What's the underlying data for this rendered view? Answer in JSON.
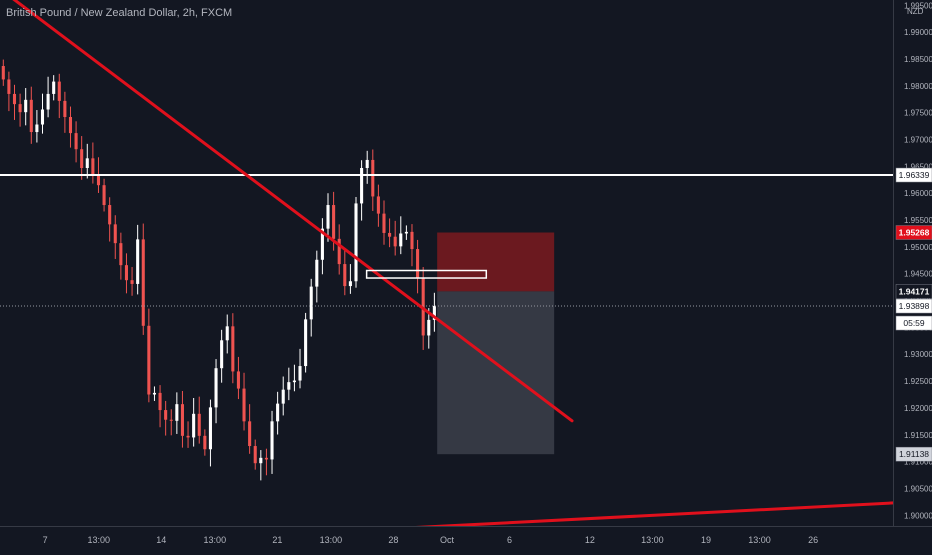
{
  "chart_data": {
    "type": "candlestick",
    "title": "British Pound / New Zealand Dollar, 2h, FXCM",
    "currency": "NZD",
    "y_range": [
      1.898,
      1.996
    ],
    "y_ticks": [
      1.995,
      1.99,
      1.985,
      1.98,
      1.975,
      1.97,
      1.965,
      1.96,
      1.955,
      1.95,
      1.945,
      1.94,
      1.935,
      1.93,
      1.925,
      1.92,
      1.915,
      1.91,
      1.905,
      1.9
    ],
    "y_tick_labels": [
      "1.99500",
      "1.99000",
      "1.98500",
      "1.98000",
      "1.97500",
      "1.97000",
      "1.96500",
      "1.96000",
      "1.95500",
      "1.95000",
      "1.94500",
      "1.94000",
      "1.93500",
      "1.93000",
      "1.92500",
      "1.92000",
      "1.91500",
      "1.91000",
      "1.90500",
      "1.90000"
    ],
    "x_labels": [
      "7",
      "13:00",
      "14",
      "13:00",
      "21",
      "13:00",
      "28",
      "Oct",
      "6",
      "12",
      "13:00",
      "19",
      "13:00",
      "26"
    ],
    "x_label_positions": [
      5,
      11,
      18,
      24,
      31,
      37,
      44,
      50,
      57,
      66,
      73,
      79,
      85,
      91
    ],
    "candles_close": [
      1.9812,
      1.9785,
      1.9766,
      1.9751,
      1.9774,
      1.9714,
      1.9728,
      1.9756,
      1.9785,
      1.9808,
      1.9772,
      1.9742,
      1.9712,
      1.9682,
      1.9647,
      1.9665,
      1.9635,
      1.9615,
      1.9578,
      1.9542,
      1.9507,
      1.9466,
      1.9438,
      1.9431,
      1.9514,
      1.9353,
      1.9225,
      1.9228,
      1.9196,
      1.9178,
      1.9176,
      1.9207,
      1.9148,
      1.9145,
      1.9189,
      1.9148,
      1.9123,
      1.9201,
      1.9274,
      1.9326,
      1.9352,
      1.9268,
      1.9236,
      1.9175,
      1.9129,
      1.9097,
      1.9107,
      1.9104,
      1.9175,
      1.9208,
      1.9234,
      1.9248,
      1.9251,
      1.9278,
      1.9365,
      1.9426,
      1.9476,
      1.9534,
      1.9578,
      1.9515,
      1.9468,
      1.9427,
      1.9436,
      1.9581,
      1.9647,
      1.9662,
      1.9594,
      1.9562,
      1.9526,
      1.9519,
      1.9501,
      1.9525,
      1.9528,
      1.9496,
      1.9443,
      1.9335,
      1.9364,
      1.939
    ],
    "price_labels": [
      {
        "label": "1.96339",
        "value": 1.96339,
        "kind": "level"
      },
      {
        "label": "1.95268",
        "value": 1.95268,
        "kind": "stop"
      },
      {
        "label": "1.94171",
        "value": 1.94171,
        "kind": "entry"
      },
      {
        "label": "1.93898",
        "value": 1.93898,
        "kind": "last"
      },
      {
        "label": "05:59",
        "kind": "countdown"
      },
      {
        "label": "1.91138",
        "value": 1.91138,
        "kind": "target"
      }
    ],
    "annotations": {
      "horizontal_line": 1.96339,
      "trendline_down": {
        "from": [
          0,
          1.998
        ],
        "to": [
          64,
          1.9176
        ]
      },
      "trendline_up": {
        "from": [
          44,
          1.8975
        ],
        "to": [
          100,
          1.9023
        ]
      },
      "stop_zone": {
        "x": [
          48.9,
          62
        ],
        "y": [
          1.94171,
          1.95268
        ]
      },
      "profit_zone": {
        "x": [
          48.9,
          62
        ],
        "y": [
          1.91138,
          1.94171
        ]
      },
      "marker_box": {
        "x": [
          41,
          54.4
        ],
        "y": [
          1.9442,
          1.9456
        ]
      }
    },
    "colors": {
      "background": "#131722",
      "up_candle": "#ffffff",
      "down_candle": "#ef5350",
      "trendline": "#e0101c",
      "level_line": "#ffffff",
      "stop_zone": "#7b1a1f",
      "profit_zone": "#3a3d48",
      "axis_text": "#b2b5be"
    }
  }
}
